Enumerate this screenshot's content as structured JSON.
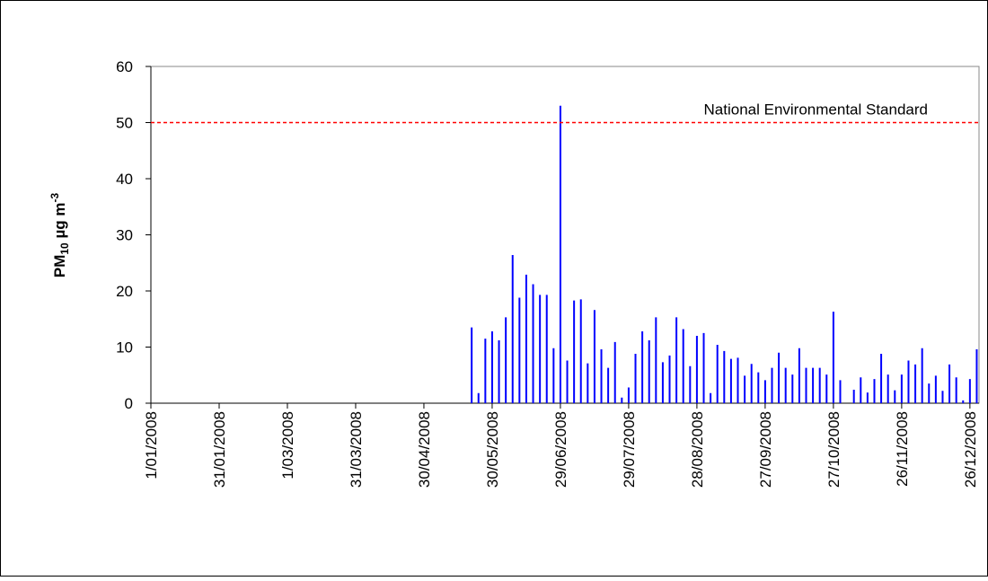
{
  "chart_data": {
    "type": "bar",
    "y_label": {
      "main": "PM",
      "sub": "10",
      "unit": " µg m",
      "sup": "-3"
    },
    "x": [
      "2008-05-21",
      "2008-05-24",
      "2008-05-27",
      "2008-05-30",
      "2008-06-02",
      "2008-06-05",
      "2008-06-08",
      "2008-06-11",
      "2008-06-14",
      "2008-06-17",
      "2008-06-20",
      "2008-06-23",
      "2008-06-26",
      "2008-06-29",
      "2008-07-02",
      "2008-07-05",
      "2008-07-08",
      "2008-07-11",
      "2008-07-14",
      "2008-07-17",
      "2008-07-20",
      "2008-07-23",
      "2008-07-26",
      "2008-07-29",
      "2008-08-01",
      "2008-08-04",
      "2008-08-07",
      "2008-08-10",
      "2008-08-13",
      "2008-08-16",
      "2008-08-19",
      "2008-08-22",
      "2008-08-25",
      "2008-08-28",
      "2008-08-31",
      "2008-09-03",
      "2008-09-06",
      "2008-09-09",
      "2008-09-12",
      "2008-09-15",
      "2008-09-18",
      "2008-09-21",
      "2008-09-24",
      "2008-09-27",
      "2008-09-30",
      "2008-10-03",
      "2008-10-06",
      "2008-10-09",
      "2008-10-12",
      "2008-10-15",
      "2008-10-18",
      "2008-10-21",
      "2008-10-24",
      "2008-10-27",
      "2008-10-30",
      "2008-11-05",
      "2008-11-08",
      "2008-11-11",
      "2008-11-14",
      "2008-11-17",
      "2008-11-20",
      "2008-11-23",
      "2008-11-26",
      "2008-11-29",
      "2008-12-02",
      "2008-12-05",
      "2008-12-08",
      "2008-12-11",
      "2008-12-14",
      "2008-12-17",
      "2008-12-20",
      "2008-12-23",
      "2008-12-26",
      "2008-12-29"
    ],
    "values": [
      13.5,
      1.8,
      11.5,
      12.8,
      11.2,
      15.3,
      26.4,
      18.8,
      22.9,
      21.2,
      19.3,
      19.3,
      9.8,
      53,
      7.6,
      18.3,
      18.5,
      7.1,
      16.6,
      9.6,
      6.3,
      10.9,
      1.0,
      2.8,
      8.8,
      12.8,
      11.2,
      15.3,
      7.3,
      8.5,
      15.3,
      13.2,
      6.6,
      12.0,
      12.5,
      1.8,
      10.4,
      9.3,
      7.9,
      8.1,
      4.9,
      7.0,
      5.5,
      4.1,
      6.3,
      9.0,
      6.3,
      5.1,
      9.8,
      6.3,
      6.3,
      6.3,
      5.1,
      16.3,
      4.1,
      2.4,
      4.6,
      1.9,
      4.3,
      8.8,
      5.1,
      2.3,
      5.1,
      7.6,
      6.9,
      9.8,
      3.5,
      4.9,
      2.2,
      6.9,
      4.6,
      0.5,
      4.3,
      9.6
    ],
    "color": "#0000ff",
    "xlim": [
      "2008-01-01",
      "2008-12-30"
    ],
    "xticks": [
      {
        "value": "2008-01-01",
        "label": "1/01/2008"
      },
      {
        "value": "2008-01-31",
        "label": "31/01/2008"
      },
      {
        "value": "2008-03-01",
        "label": "1/03/2008"
      },
      {
        "value": "2008-03-31",
        "label": "31/03/2008"
      },
      {
        "value": "2008-04-30",
        "label": "30/04/2008"
      },
      {
        "value": "2008-05-30",
        "label": "30/05/2008"
      },
      {
        "value": "2008-06-29",
        "label": "29/06/2008"
      },
      {
        "value": "2008-07-29",
        "label": "29/07/2008"
      },
      {
        "value": "2008-08-28",
        "label": "28/08/2008"
      },
      {
        "value": "2008-09-27",
        "label": "27/09/2008"
      },
      {
        "value": "2008-10-27",
        "label": "27/10/2008"
      },
      {
        "value": "2008-11-26",
        "label": "26/11/2008"
      },
      {
        "value": "2008-12-26",
        "label": "26/12/2008"
      }
    ],
    "ylim": [
      0,
      60
    ],
    "yticks": [
      0,
      10,
      20,
      30,
      40,
      50,
      60
    ],
    "reference_lines": [
      {
        "value": 50,
        "label": "National Environmental Standard",
        "color": "#ff0000"
      }
    ]
  }
}
